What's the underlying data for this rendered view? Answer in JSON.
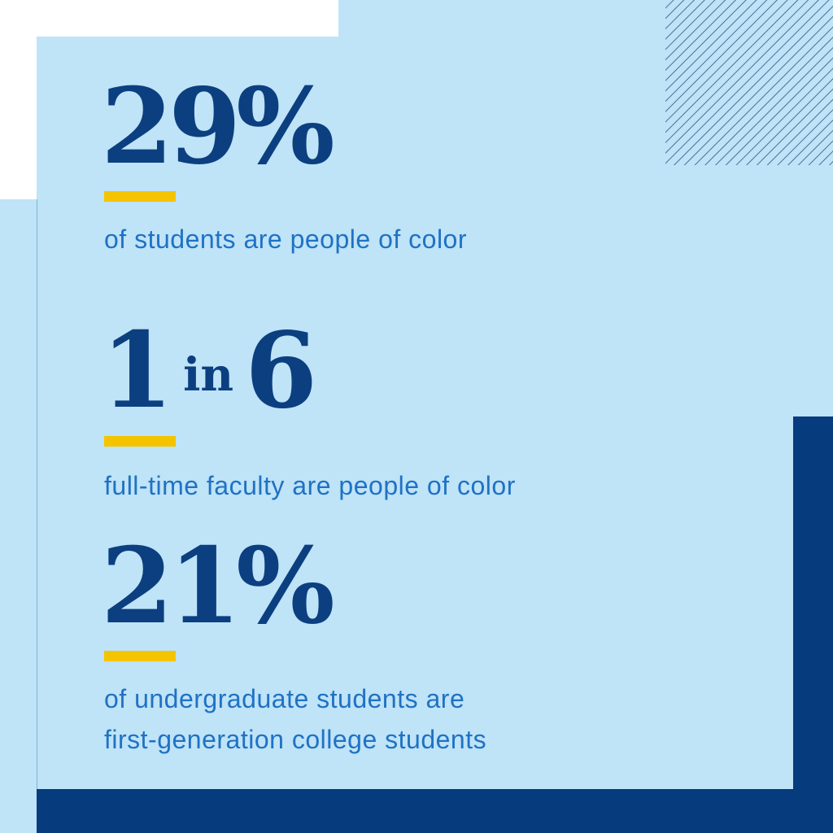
{
  "stats": [
    {
      "figure": "29%",
      "caption": [
        "of students are people of color"
      ]
    },
    {
      "figure_parts": [
        "1",
        "in",
        "6"
      ],
      "caption": [
        "full-time faculty are people of color"
      ]
    },
    {
      "figure": "21%",
      "caption": [
        "of undergraduate students are",
        "first-generation college students"
      ]
    }
  ]
}
